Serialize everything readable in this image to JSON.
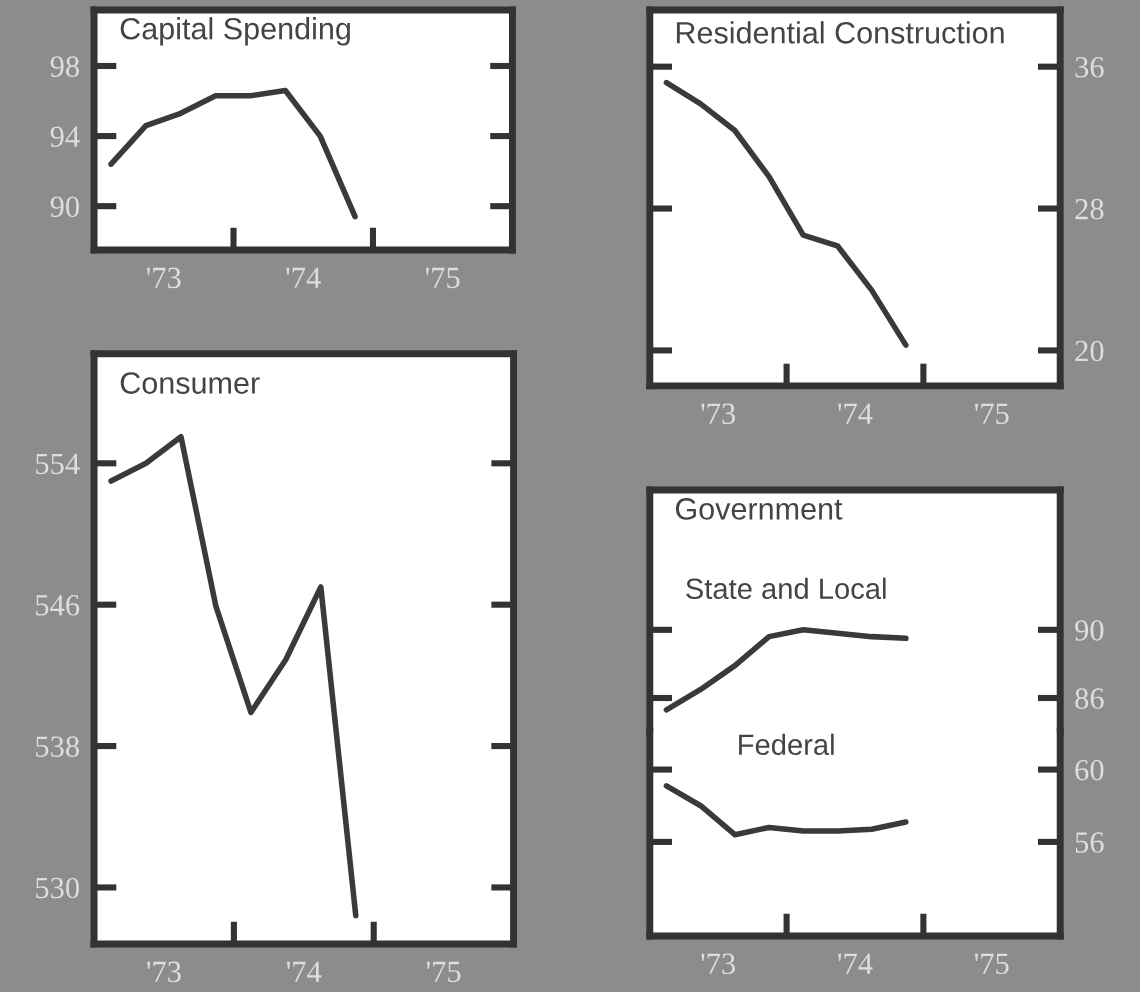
{
  "chart_data": [
    {
      "type": "line",
      "title": "Capital Spending",
      "x": [
        "1973-02-15",
        "1973-05-15",
        "1973-08-15",
        "1973-11-15",
        "1974-02-15",
        "1974-05-15",
        "1974-08-15",
        "1974-11-15"
      ],
      "series": [
        {
          "color": "#3a3a3a",
          "values": [
            92.4,
            94.6,
            95.3,
            96.3,
            96.3,
            96.6,
            94.0,
            89.4
          ]
        }
      ],
      "xlim": [
        "1973",
        "1976"
      ],
      "xticks": [
        {
          "value": "1973-07",
          "label": "'73"
        },
        {
          "value": "1974",
          "label": null
        },
        {
          "value": "1974-07",
          "label": "'74"
        },
        {
          "value": "1975",
          "label": null
        },
        {
          "value": "1975-07",
          "label": "'75"
        }
      ],
      "ylim": [
        87.5,
        101.2
      ],
      "yticks": [
        90,
        94,
        98
      ]
    },
    {
      "type": "line",
      "title": "Residential Construction",
      "x": [
        "1973-02-15",
        "1973-05-15",
        "1973-08-15",
        "1973-11-15",
        "1974-02-15",
        "1974-05-15",
        "1974-08-15",
        "1974-11-15"
      ],
      "series": [
        {
          "color": "#3a3a3a",
          "axis": "y2",
          "values": [
            35.1,
            33.9,
            32.4,
            29.8,
            26.5,
            25.9,
            23.4,
            20.3
          ]
        }
      ],
      "xlim": [
        "1973",
        "1976"
      ],
      "xticks": [
        {
          "value": "1973-07",
          "label": "'73"
        },
        {
          "value": "1974",
          "label": null
        },
        {
          "value": "1974-07",
          "label": "'74"
        },
        {
          "value": "1975",
          "label": null
        },
        {
          "value": "1975-07",
          "label": "'75"
        }
      ],
      "y2lim": [
        18.0,
        39.2
      ],
      "y2ticks": [
        20,
        28,
        36
      ]
    },
    {
      "type": "line",
      "title": "Consumer",
      "x": [
        "1973-02-15",
        "1973-05-15",
        "1973-08-15",
        "1973-11-15",
        "1974-02-15",
        "1974-05-15",
        "1974-08-15",
        "1974-11-15"
      ],
      "series": [
        {
          "color": "#3a3a3a",
          "values": [
            553.0,
            554.0,
            555.5,
            545.9,
            539.9,
            542.9,
            547.0,
            528.4
          ]
        }
      ],
      "xlim": [
        "1973",
        "1976"
      ],
      "xticks": [
        {
          "value": "1973-07",
          "label": "'73"
        },
        {
          "value": "1974",
          "label": null
        },
        {
          "value": "1974-07",
          "label": "'74"
        },
        {
          "value": "1975",
          "label": null
        },
        {
          "value": "1975-07",
          "label": "'75"
        }
      ],
      "ylim": [
        526.8,
        560.2
      ],
      "yticks": [
        530,
        538,
        546,
        554
      ]
    },
    {
      "type": "line",
      "title": "Government",
      "x": [
        "1973-02-15",
        "1973-05-15",
        "1973-08-15",
        "1973-11-15",
        "1974-02-15",
        "1974-05-15",
        "1974-08-15",
        "1974-11-15"
      ],
      "series": [
        {
          "name": "State and Local",
          "color": "#3a3a3a",
          "axis": "y2",
          "values": [
            85.3,
            86.5,
            87.9,
            89.6,
            90.0,
            89.8,
            89.6,
            89.5
          ]
        }
      ],
      "xlim": [
        "1973",
        "1976"
      ],
      "tick_labels": "y",
      "y2lim": [
        84.0,
        98.2
      ],
      "y2ticks": [
        86,
        90
      ]
    },
    {
      "type": "line",
      "x": [
        "1973-02-15",
        "1973-05-15",
        "1973-08-15",
        "1973-11-15",
        "1974-02-15",
        "1974-05-15",
        "1974-08-15",
        "1974-11-15"
      ],
      "series": [
        {
          "name": "Federal",
          "color": "#3a3a3a",
          "axis": "y2",
          "values": [
            59.1,
            58.0,
            56.4,
            56.8,
            56.6,
            56.6,
            56.7,
            57.1
          ]
        }
      ],
      "xlim": [
        "1973",
        "1976"
      ],
      "xticks": [
        {
          "value": "1973-07",
          "label": "'73"
        },
        {
          "value": "1974",
          "label": null
        },
        {
          "value": "1974-07",
          "label": "'74"
        },
        {
          "value": "1975",
          "label": null
        },
        {
          "value": "1975-07",
          "label": "'75"
        }
      ],
      "y2lim": [
        50.8,
        62.1
      ],
      "y2ticks": [
        56,
        60
      ]
    }
  ]
}
